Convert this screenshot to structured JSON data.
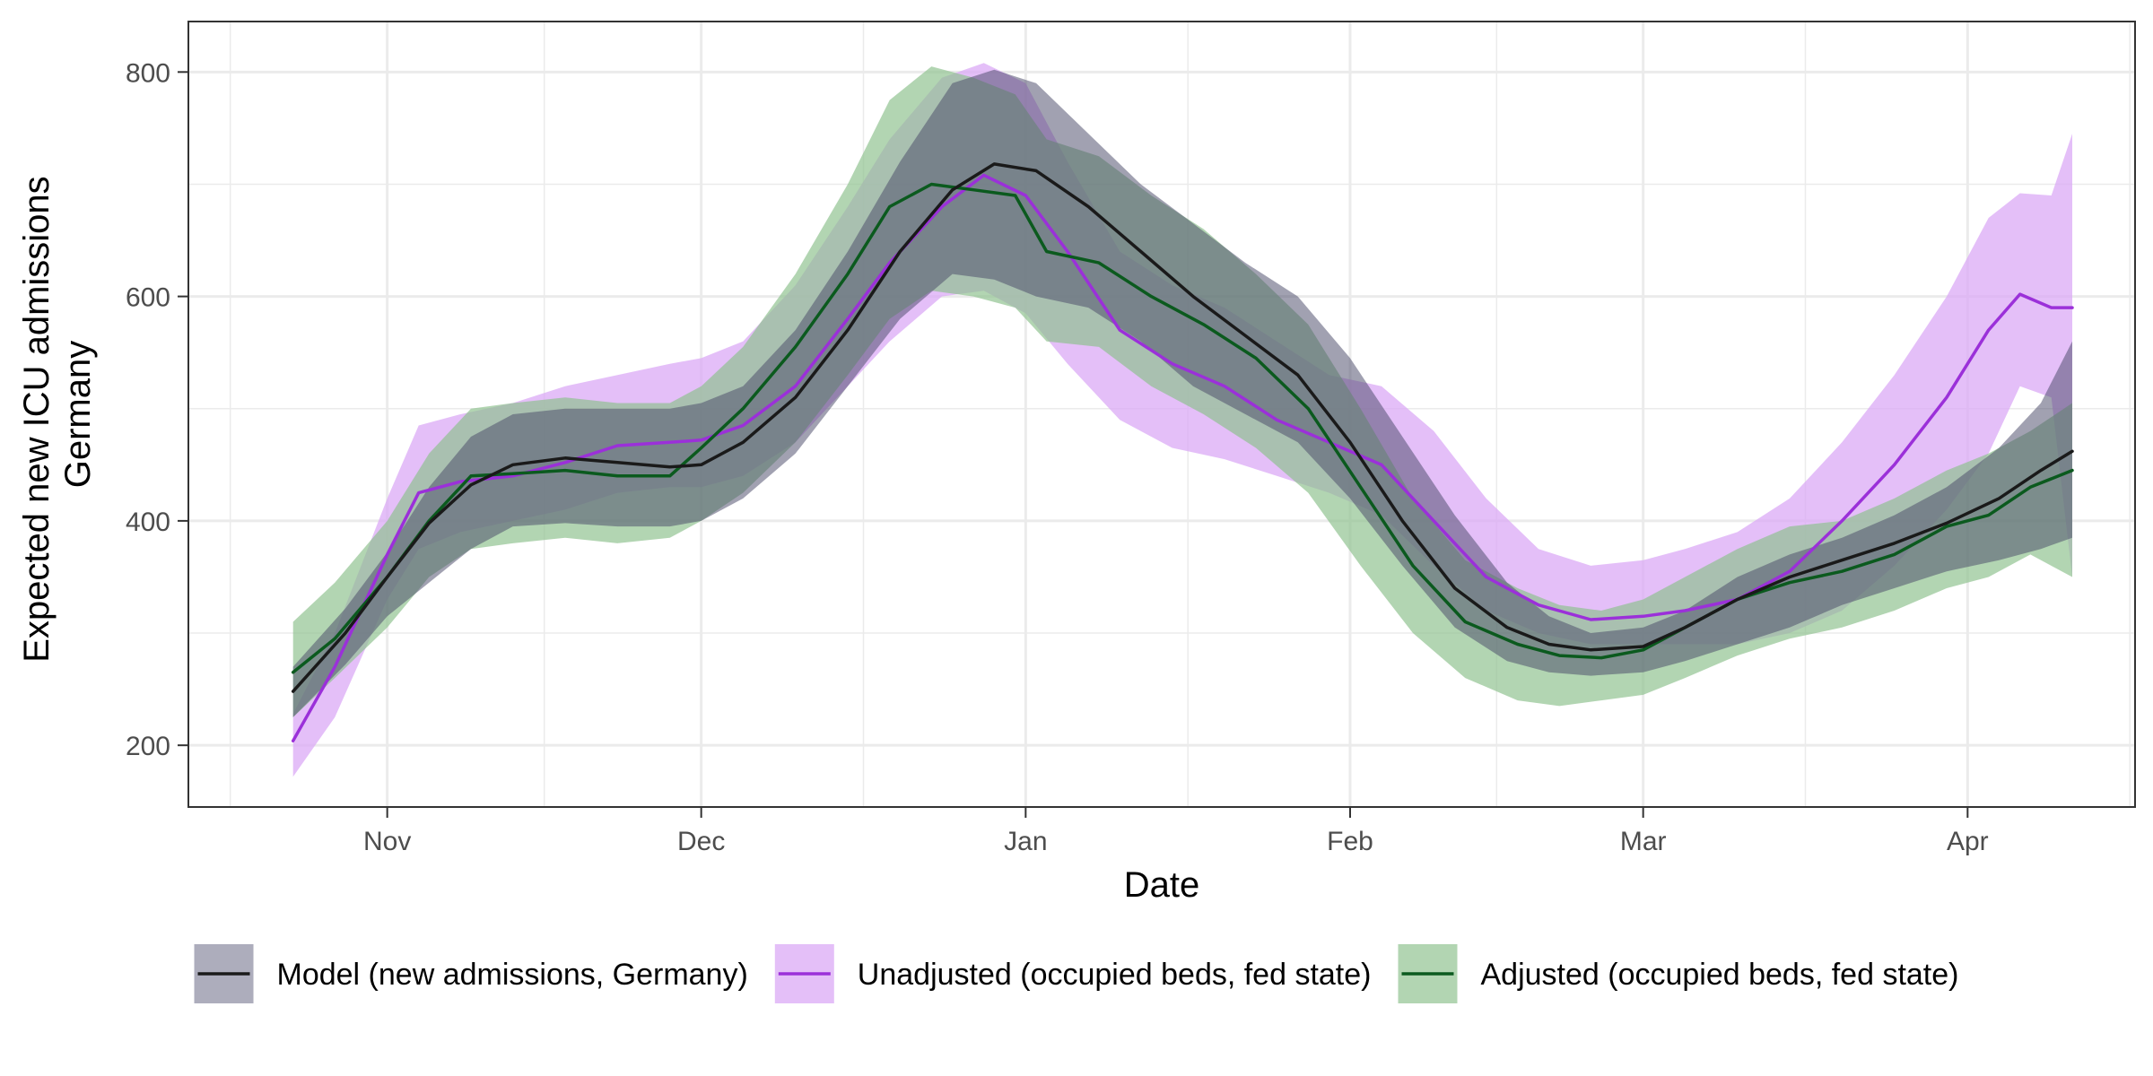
{
  "chart_data": {
    "type": "line",
    "xlabel": "Date",
    "ylabel_lines": [
      "Expected new ICU admissions",
      "Germany"
    ],
    "x_ticks": [
      {
        "date": "2020-11-01",
        "label": "Nov"
      },
      {
        "date": "2020-12-01",
        "label": "Dec"
      },
      {
        "date": "2021-01-01",
        "label": "Jan"
      },
      {
        "date": "2021-02-01",
        "label": "Feb"
      },
      {
        "date": "2021-03-01",
        "label": "Mar"
      },
      {
        "date": "2021-04-01",
        "label": "Apr"
      }
    ],
    "y_ticks": [
      200,
      400,
      600,
      800
    ],
    "xlim": [
      "2020-10-13",
      "2021-04-17"
    ],
    "ylim": [
      145,
      845
    ],
    "grid": true,
    "legend_position": "bottom",
    "colors": {
      "model_line": "#1a1a1a",
      "model_band": "#4a4a6a",
      "unadjusted_line": "#9b30d9",
      "unadjusted_band": "#d9a6f5",
      "adjusted_line": "#0b5a1e",
      "adjusted_band": "#8dc18d"
    },
    "series": [
      {
        "key": "model",
        "name": "Model (new admissions, Germany)",
        "x": [
          "2020-10-23",
          "2020-10-28",
          "2020-11-01",
          "2020-11-05",
          "2020-11-09",
          "2020-11-13",
          "2020-11-18",
          "2020-11-23",
          "2020-11-28",
          "2020-12-01",
          "2020-12-05",
          "2020-12-10",
          "2020-12-15",
          "2020-12-20",
          "2020-12-25",
          "2020-12-29",
          "2021-01-02",
          "2021-01-07",
          "2021-01-12",
          "2021-01-17",
          "2021-01-22",
          "2021-01-27",
          "2021-02-01",
          "2021-02-06",
          "2021-02-11",
          "2021-02-16",
          "2021-02-20",
          "2021-02-24",
          "2021-03-01",
          "2021-03-05",
          "2021-03-10",
          "2021-03-15",
          "2021-03-20",
          "2021-03-25",
          "2021-03-30",
          "2021-04-04",
          "2021-04-08",
          "2021-04-11"
        ],
        "y": [
          248,
          300,
          350,
          398,
          432,
          450,
          456,
          452,
          448,
          450,
          470,
          510,
          570,
          640,
          695,
          718,
          712,
          680,
          640,
          600,
          565,
          530,
          470,
          400,
          340,
          305,
          290,
          285,
          288,
          305,
          330,
          350,
          365,
          380,
          398,
          420,
          445,
          462
        ],
        "lower": [
          225,
          272,
          315,
          345,
          375,
          395,
          398,
          395,
          395,
          400,
          420,
          460,
          520,
          580,
          620,
          615,
          600,
          590,
          560,
          520,
          495,
          470,
          420,
          360,
          305,
          275,
          265,
          262,
          265,
          275,
          290,
          305,
          325,
          340,
          355,
          365,
          375,
          385
        ],
        "upper": [
          270,
          322,
          372,
          430,
          475,
          495,
          500,
          500,
          500,
          505,
          520,
          570,
          640,
          720,
          790,
          802,
          790,
          745,
          700,
          665,
          630,
          600,
          545,
          475,
          405,
          345,
          315,
          300,
          305,
          320,
          350,
          370,
          385,
          405,
          430,
          465,
          505,
          560
        ]
      },
      {
        "key": "unadjusted",
        "name": "Unadjusted (occupied beds, fed state)",
        "x": [
          "2020-10-23",
          "2020-10-27",
          "2020-11-01",
          "2020-11-04",
          "2020-11-08",
          "2020-11-13",
          "2020-11-18",
          "2020-11-23",
          "2020-11-28",
          "2020-12-01",
          "2020-12-05",
          "2020-12-10",
          "2020-12-15",
          "2020-12-19",
          "2020-12-24",
          "2020-12-28",
          "2021-01-01",
          "2021-01-05",
          "2021-01-10",
          "2021-01-15",
          "2021-01-20",
          "2021-01-25",
          "2021-01-30",
          "2021-02-04",
          "2021-02-09",
          "2021-02-14",
          "2021-02-19",
          "2021-02-24",
          "2021-03-01",
          "2021-03-05",
          "2021-03-10",
          "2021-03-15",
          "2021-03-20",
          "2021-03-25",
          "2021-03-30",
          "2021-04-03",
          "2021-04-06",
          "2021-04-09",
          "2021-04-11"
        ],
        "y": [
          204,
          270,
          370,
          425,
          435,
          440,
          452,
          467,
          470,
          472,
          485,
          520,
          580,
          630,
          680,
          708,
          690,
          640,
          570,
          540,
          520,
          490,
          470,
          450,
          400,
          350,
          325,
          312,
          315,
          320,
          330,
          355,
          400,
          450,
          510,
          570,
          602,
          590,
          590
        ],
        "lower": [
          172,
          225,
          330,
          375,
          390,
          400,
          410,
          425,
          430,
          430,
          440,
          470,
          520,
          560,
          600,
          605,
          585,
          540,
          490,
          465,
          455,
          440,
          425,
          405,
          360,
          320,
          300,
          290,
          290,
          290,
          290,
          300,
          320,
          360,
          410,
          460,
          520,
          510,
          350
        ],
        "upper": [
          228,
          300,
          420,
          485,
          495,
          505,
          520,
          530,
          540,
          545,
          560,
          610,
          680,
          740,
          795,
          808,
          790,
          720,
          640,
          610,
          590,
          560,
          530,
          520,
          480,
          420,
          375,
          360,
          365,
          375,
          390,
          420,
          470,
          530,
          600,
          670,
          692,
          690,
          745
        ]
      },
      {
        "key": "adjusted",
        "name": "Adjusted (occupied beds, fed state)",
        "x": [
          "2020-10-23",
          "2020-10-27",
          "2020-11-01",
          "2020-11-05",
          "2020-11-09",
          "2020-11-13",
          "2020-11-18",
          "2020-11-23",
          "2020-11-28",
          "2020-12-01",
          "2020-12-05",
          "2020-12-10",
          "2020-12-15",
          "2020-12-19",
          "2020-12-23",
          "2020-12-27",
          "2020-12-31",
          "2021-01-03",
          "2021-01-08",
          "2021-01-13",
          "2021-01-18",
          "2021-01-23",
          "2021-01-28",
          "2021-02-02",
          "2021-02-07",
          "2021-02-12",
          "2021-02-17",
          "2021-02-21",
          "2021-02-25",
          "2021-03-01",
          "2021-03-05",
          "2021-03-10",
          "2021-03-15",
          "2021-03-20",
          "2021-03-25",
          "2021-03-30",
          "2021-04-03",
          "2021-04-07",
          "2021-04-11"
        ],
        "y": [
          265,
          295,
          350,
          400,
          440,
          442,
          445,
          440,
          440,
          465,
          500,
          555,
          620,
          680,
          700,
          695,
          690,
          640,
          630,
          600,
          575,
          545,
          500,
          430,
          360,
          310,
          290,
          280,
          278,
          285,
          305,
          330,
          345,
          355,
          370,
          395,
          405,
          430,
          445
        ],
        "lower": [
          225,
          260,
          305,
          350,
          375,
          380,
          385,
          380,
          385,
          400,
          425,
          470,
          530,
          580,
          605,
          600,
          590,
          560,
          555,
          520,
          495,
          465,
          425,
          360,
          300,
          260,
          240,
          235,
          240,
          245,
          260,
          280,
          295,
          305,
          320,
          340,
          350,
          370,
          350
        ],
        "upper": [
          310,
          345,
          400,
          460,
          500,
          505,
          510,
          505,
          505,
          520,
          555,
          620,
          700,
          775,
          805,
          795,
          780,
          740,
          725,
          690,
          660,
          620,
          575,
          500,
          420,
          365,
          340,
          325,
          320,
          330,
          350,
          375,
          395,
          400,
          420,
          445,
          460,
          480,
          505
        ]
      }
    ]
  }
}
